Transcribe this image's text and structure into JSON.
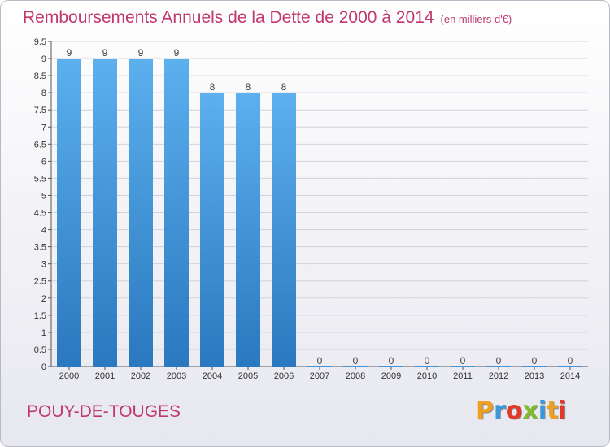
{
  "header": {
    "title": "Remboursements Annuels de la Dette de 2000 à 2014",
    "unit": "(en milliers d'€)"
  },
  "footer": {
    "commune": "POUY-DE-TOUGES",
    "brand": "Proxiti",
    "brand_colors": [
      "#f0a020",
      "#3a9ad9",
      "#e23a2a",
      "#7dbd2b",
      "#3a9ad9",
      "#f0a020",
      "#e23a2a"
    ]
  },
  "chart_data": {
    "type": "bar",
    "title": "Remboursements Annuels de la Dette de 2000 à 2014",
    "subtitle": "(en milliers d'€)",
    "xlabel": "",
    "ylabel": "",
    "categories": [
      "2000",
      "2001",
      "2002",
      "2003",
      "2004",
      "2005",
      "2006",
      "2007",
      "2008",
      "2009",
      "2010",
      "2011",
      "2012",
      "2013",
      "2014"
    ],
    "values": [
      9,
      9,
      9,
      9,
      8,
      8,
      8,
      0,
      0,
      0,
      0,
      0,
      0,
      0,
      0
    ],
    "data_labels": [
      "9",
      "9",
      "9",
      "9",
      "8",
      "8",
      "8",
      "0",
      "0",
      "0",
      "0",
      "0",
      "0",
      "0",
      "0"
    ],
    "yticks": [
      "0",
      "0.5",
      "1",
      "1.5",
      "2",
      "2.5",
      "3",
      "3.5",
      "4",
      "4.5",
      "5",
      "5.5",
      "6",
      "6.5",
      "7",
      "7.5",
      "8",
      "8.5",
      "9",
      "9.5"
    ],
    "ylim": [
      0,
      9.5
    ],
    "grid": "horizontal",
    "bar_color": "#3a8fd6"
  }
}
